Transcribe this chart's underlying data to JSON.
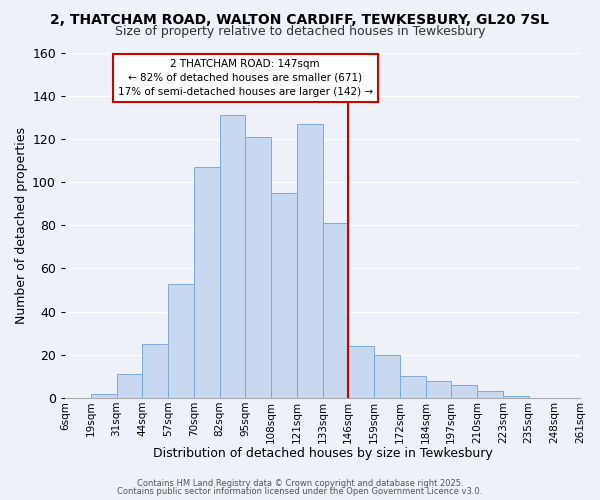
{
  "title": "2, THATCHAM ROAD, WALTON CARDIFF, TEWKESBURY, GL20 7SL",
  "subtitle": "Size of property relative to detached houses in Tewkesbury",
  "xlabel": "Distribution of detached houses by size in Tewkesbury",
  "ylabel": "Number of detached properties",
  "bar_labels": [
    "6sqm",
    "19sqm",
    "31sqm",
    "44sqm",
    "57sqm",
    "70sqm",
    "82sqm",
    "95sqm",
    "108sqm",
    "121sqm",
    "133sqm",
    "146sqm",
    "159sqm",
    "172sqm",
    "184sqm",
    "197sqm",
    "210sqm",
    "223sqm",
    "235sqm",
    "248sqm",
    "261sqm"
  ],
  "bar_values": [
    0,
    2,
    11,
    25,
    53,
    107,
    131,
    121,
    95,
    127,
    81,
    24,
    20,
    10,
    8,
    6,
    3,
    1,
    0,
    0
  ],
  "bar_color": "#c8d8f0",
  "bar_edge_color": "#7aaad4",
  "vline_color": "#cc0000",
  "vline_x": 11,
  "annotation_title": "2 THATCHAM ROAD: 147sqm",
  "annotation_line1": "← 82% of detached houses are smaller (671)",
  "annotation_line2": "17% of semi-detached houses are larger (142) →",
  "ylim": [
    0,
    160
  ],
  "yticks": [
    0,
    20,
    40,
    60,
    80,
    100,
    120,
    140,
    160
  ],
  "background_color": "#eef1f8",
  "grid_color": "#ffffff",
  "footer_line1": "Contains HM Land Registry data © Crown copyright and database right 2025.",
  "footer_line2": "Contains public sector information licensed under the Open Government Licence v3.0."
}
